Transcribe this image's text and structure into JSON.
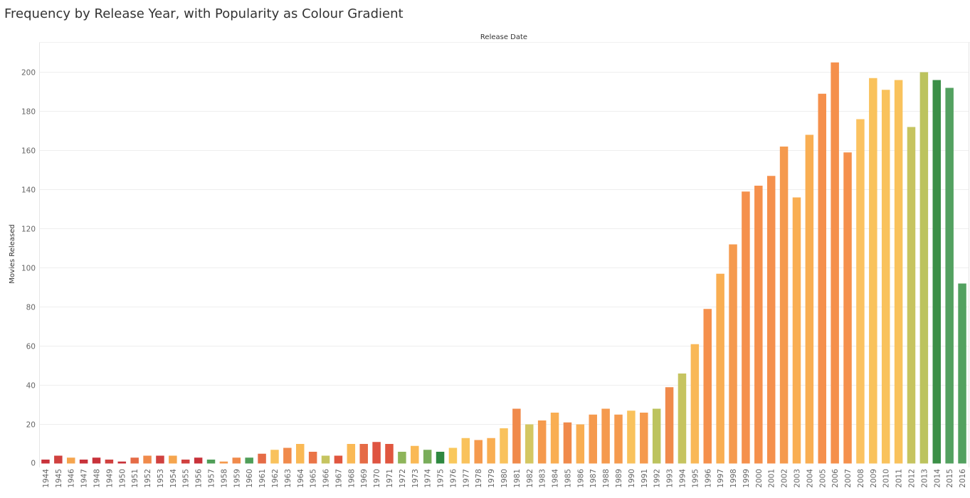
{
  "chart_data": {
    "type": "bar",
    "title": "Frequency by Release Year, with Popularity as Colour Gradient",
    "top_axis_label": "Release Date",
    "ylabel": "Movies Released",
    "ylim": [
      0,
      215
    ],
    "yticks": [
      0,
      20,
      40,
      60,
      80,
      100,
      120,
      140,
      160,
      180,
      200
    ],
    "grid": true,
    "color_encoding": "popularity (red = low, green = high)",
    "categories": [
      "1944",
      "1945",
      "1946",
      "1947",
      "1948",
      "1949",
      "1950",
      "1951",
      "1952",
      "1953",
      "1954",
      "1955",
      "1956",
      "1957",
      "1958",
      "1959",
      "1960",
      "1961",
      "1962",
      "1963",
      "1964",
      "1965",
      "1966",
      "1967",
      "1968",
      "1969",
      "1970",
      "1971",
      "1972",
      "1973",
      "1974",
      "1975",
      "1976",
      "1977",
      "1978",
      "1979",
      "1980",
      "1981",
      "1982",
      "1983",
      "1984",
      "1985",
      "1986",
      "1987",
      "1988",
      "1989",
      "1990",
      "1991",
      "1992",
      "1993",
      "1994",
      "1995",
      "1996",
      "1997",
      "1998",
      "1999",
      "2000",
      "2001",
      "2002",
      "2003",
      "2004",
      "2005",
      "2006",
      "2007",
      "2008",
      "2009",
      "2010",
      "2011",
      "2012",
      "2013",
      "2014",
      "2015",
      "2016"
    ],
    "values": [
      2,
      4,
      3,
      2,
      3,
      2,
      1,
      3,
      4,
      4,
      4,
      2,
      3,
      2,
      1,
      3,
      3,
      5,
      7,
      8,
      10,
      6,
      4,
      4,
      10,
      10,
      11,
      10,
      6,
      9,
      7,
      6,
      8,
      13,
      12,
      13,
      18,
      28,
      20,
      22,
      26,
      21,
      20,
      25,
      28,
      25,
      27,
      26,
      28,
      39,
      46,
      61,
      79,
      97,
      112,
      139,
      142,
      147,
      162,
      136,
      168,
      189,
      205,
      159,
      176,
      197,
      191,
      196,
      172,
      200,
      196,
      192,
      92
    ],
    "colors": [
      "#c8323a",
      "#d0413f",
      "#f5a54e",
      "#c8323a",
      "#c8323a",
      "#d0413f",
      "#c8323a",
      "#e56b46",
      "#f08a4b",
      "#d0413f",
      "#f5a54e",
      "#d0413f",
      "#c8323a",
      "#4f9e58",
      "#f59a4e",
      "#f08a4b",
      "#4f9e58",
      "#e56b46",
      "#f9c25c",
      "#f08a4b",
      "#fab955",
      "#ea7447",
      "#c6c460",
      "#e0563f",
      "#fab955",
      "#e56b46",
      "#df5441",
      "#e0563f",
      "#8eb55a",
      "#fab955",
      "#79ad5a",
      "#2e8840",
      "#f9c85c",
      "#f9c25c",
      "#f59a4e",
      "#f9ae52",
      "#f9c25c",
      "#f08a4b",
      "#d4c761",
      "#f59a4e",
      "#f9ae52",
      "#f08a4b",
      "#f9ae52",
      "#f59a4e",
      "#f59a4e",
      "#f59a4e",
      "#f9c25c",
      "#f59a4e",
      "#bcc35e",
      "#f08a4b",
      "#c6c460",
      "#f9b857",
      "#f5904c",
      "#f9ae52",
      "#f59a4e",
      "#f5904c",
      "#f5904c",
      "#f5904c",
      "#f59a4e",
      "#f9ae52",
      "#f9ae52",
      "#f5904c",
      "#f5904c",
      "#f5904c",
      "#fbc260",
      "#f9c25c",
      "#f9c25c",
      "#f9c25c",
      "#c6c460",
      "#bcc35e",
      "#3b8f47",
      "#53a160",
      "#53a160"
    ]
  }
}
